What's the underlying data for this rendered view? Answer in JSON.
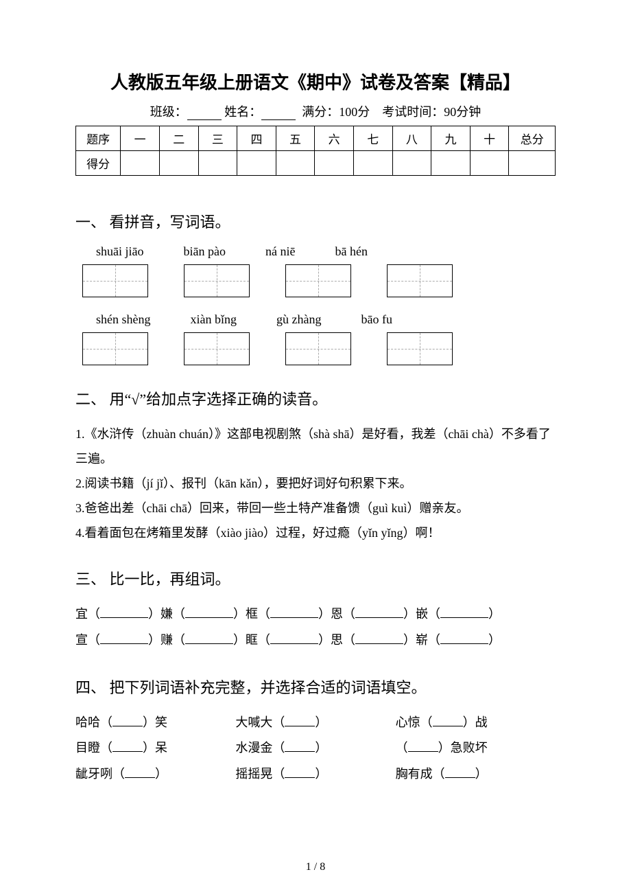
{
  "title": "人教版五年级上册语文《期中》试卷及答案【精品】",
  "meta": {
    "class_label": "班级：",
    "name_label": "姓名：",
    "full_score": "满分：100分",
    "time": "考试时间：90分钟"
  },
  "score_table": {
    "row1_label": "题序",
    "cols": [
      "一",
      "二",
      "三",
      "四",
      "五",
      "六",
      "七",
      "八",
      "九",
      "十"
    ],
    "total_label": "总分",
    "row2_label": "得分"
  },
  "q1": {
    "head": "一、 看拼音，写词语。",
    "row1_pinyin": [
      "shuāi jiāo",
      "biān pào",
      "ná niē",
      "bā hén"
    ],
    "row2_pinyin": [
      "shén shèng",
      "xiàn bǐng",
      "gù zhàng",
      "bāo fu"
    ]
  },
  "q2": {
    "head": "二、 用“√”给加点字选择正确的读音。",
    "lines": [
      "1.《水浒传（zhuàn  chuán）》这部电视剧煞（shà  shā）是好看，我差（chāi  chà）不多看了三遍。",
      "2.阅读书籍（jí  jǐ）、报刊（kān  kǎn），要把好词好句积累下来。",
      "3.爸爸出差（chāi  chā）回来，带回一些土特产准备馈（guì  kuì）赠亲友。",
      "4.看着面包在烤箱里发酵（xiào  jiào）过程，好过瘾（yǐn  yǐng）啊！"
    ]
  },
  "q3": {
    "head": "三、 比一比，再组词。",
    "rows": [
      [
        "宜",
        "嫌",
        "框",
        "恩",
        "嵌"
      ],
      [
        "宣",
        "赚",
        "眶",
        "思",
        "崭"
      ]
    ]
  },
  "q4": {
    "head": "四、 把下列词语补充完整，并选择合适的词语填空。",
    "rows": [
      [
        {
          "pre": "哈哈（",
          "post": "）笑"
        },
        {
          "pre": "大喊大（",
          "post": "）"
        },
        {
          "pre": "心惊（",
          "post": "）战"
        }
      ],
      [
        {
          "pre": "目瞪（",
          "post": "）呆"
        },
        {
          "pre": "水漫金（",
          "post": "）"
        },
        {
          "pre": "（",
          "post": "）急败坏"
        }
      ],
      [
        {
          "pre": "龇牙咧（",
          "post": "）"
        },
        {
          "pre": "摇摇晃（",
          "post": "）"
        },
        {
          "pre": "胸有成（",
          "post": "）"
        }
      ]
    ]
  },
  "page_num": "1 / 8"
}
